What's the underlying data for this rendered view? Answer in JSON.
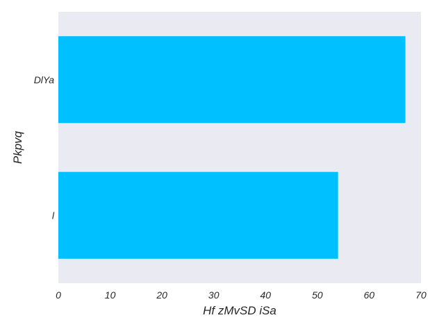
{
  "chart_data": {
    "type": "bar",
    "orientation": "horizontal",
    "categories": [
      "DlYa",
      "l"
    ],
    "values": [
      67,
      54
    ],
    "xlabel": "Hf zMvSD iSa",
    "ylabel": "Pkpvq",
    "xlim": [
      0,
      70
    ],
    "xticks": [
      "0",
      "10",
      "20",
      "30",
      "40",
      "50",
      "60",
      "70"
    ],
    "grid": false,
    "colors": {
      "bar": "#00c0ff",
      "plot_background": "#eaeaf2"
    }
  }
}
